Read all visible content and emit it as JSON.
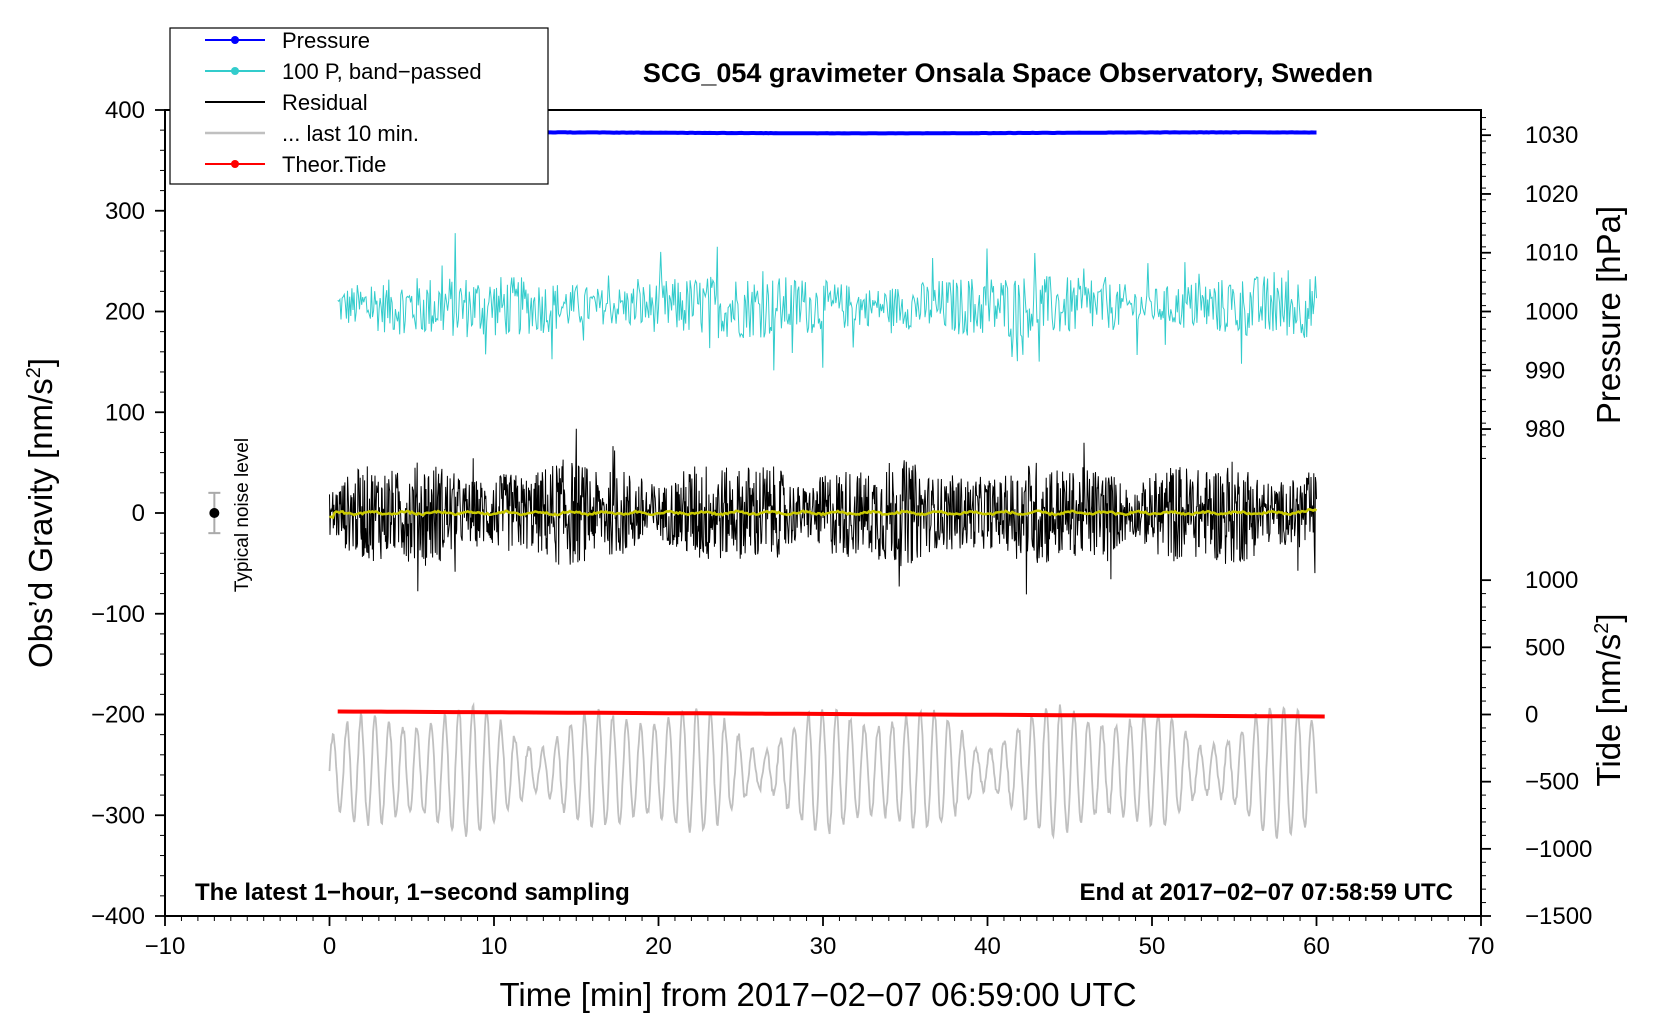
{
  "chart_data": {
    "type": "line",
    "title": "SCG_054 gravimeter Onsala Space Observatory, Sweden",
    "xlabel": "Time [min] from 2017−02−07 06:59:00 UTC",
    "ylabel_left": "Obs’d Gravity [nm/s²]",
    "ylabel_left_parts": {
      "main": "Obs’d Gravity [nm/s",
      "sup": "2",
      "end": "]"
    },
    "ylabel_right_pressure": "Pressure [hPa]",
    "ylabel_right_tide": "Tide [nm/s²]",
    "ylabel_right_tide_parts": {
      "main": "Tide [nm/s",
      "sup": "2",
      "end": "]"
    },
    "xlim": [
      -10,
      70
    ],
    "ylim": [
      -400,
      400
    ],
    "xticks": [
      -10,
      0,
      10,
      20,
      30,
      40,
      50,
      60,
      70
    ],
    "xtick_labels": [
      "−10",
      "0",
      "10",
      "20",
      "30",
      "40",
      "50",
      "60",
      "70"
    ],
    "yticks": [
      -400,
      -300,
      -200,
      -100,
      0,
      100,
      200,
      300,
      400
    ],
    "ytick_labels": [
      "−400",
      "−300",
      "−200",
      "−100",
      "0",
      "100",
      "200",
      "300",
      "400"
    ],
    "pressure_axis": {
      "ticks": [
        980,
        990,
        1000,
        1010,
        1020,
        1030
      ],
      "value_at_y": {
        "1000": 200,
        "1030": 375
      }
    },
    "tide_axis": {
      "ticks": [
        1000,
        500,
        0,
        -500,
        -1000,
        -1500
      ],
      "tick_labels": [
        "1000",
        "500",
        "0",
        "−500",
        "−1000",
        "−1500"
      ],
      "value_at_y": {
        "0": -200,
        "-1500": -400
      }
    },
    "series": [
      {
        "name": "Pressure",
        "color": "#0000ff",
        "description": "Barometric pressure (hPa)",
        "x_range": [
          0.5,
          60
        ],
        "approx_value_hPa": 1030.4
      },
      {
        "name": "100 P, band−passed",
        "color": "#33cccc",
        "x_range": [
          0.5,
          60
        ],
        "center": 205,
        "typical_range": [
          130,
          260
        ]
      },
      {
        "name": "Residual",
        "color": "#000000",
        "x_range": [
          0,
          60
        ],
        "center": 0,
        "typical_range": [
          -120,
          122
        ]
      },
      {
        "name": "... last 10 min.",
        "color": "#c0c0c0",
        "x_range": [
          0,
          60
        ],
        "center": -255,
        "typical_range": [
          -342,
          -182
        ]
      },
      {
        "name": "Theor.Tide",
        "color": "#ff0000",
        "x_range": [
          0.5,
          60.5
        ],
        "start": -197,
        "end": -202
      },
      {
        "name": "smoothed residual",
        "color": "#c8c800",
        "x_range": [
          0,
          60
        ],
        "center": 0
      }
    ],
    "legend": [
      {
        "label": "Pressure",
        "color": "#0000ff",
        "marker": true
      },
      {
        "label": "100 P, band−passed",
        "color": "#33cccc",
        "marker": true
      },
      {
        "label": "Residual",
        "color": "#000000",
        "marker": false
      },
      {
        "label": "... last 10 min.",
        "color": "#c0c0c0",
        "marker": false
      },
      {
        "label": "Theor.Tide",
        "color": "#ff0000",
        "marker": true
      }
    ],
    "legend_position": "top-left",
    "annotations": {
      "noise_label": "Typical noise level",
      "noise_center": 0,
      "noise_halfwidth": 20,
      "noise_x": -7,
      "footer_left": "The latest 1−hour, 1−second sampling",
      "footer_right": "End at 2017−02−07 07:58:59 UTC"
    }
  }
}
